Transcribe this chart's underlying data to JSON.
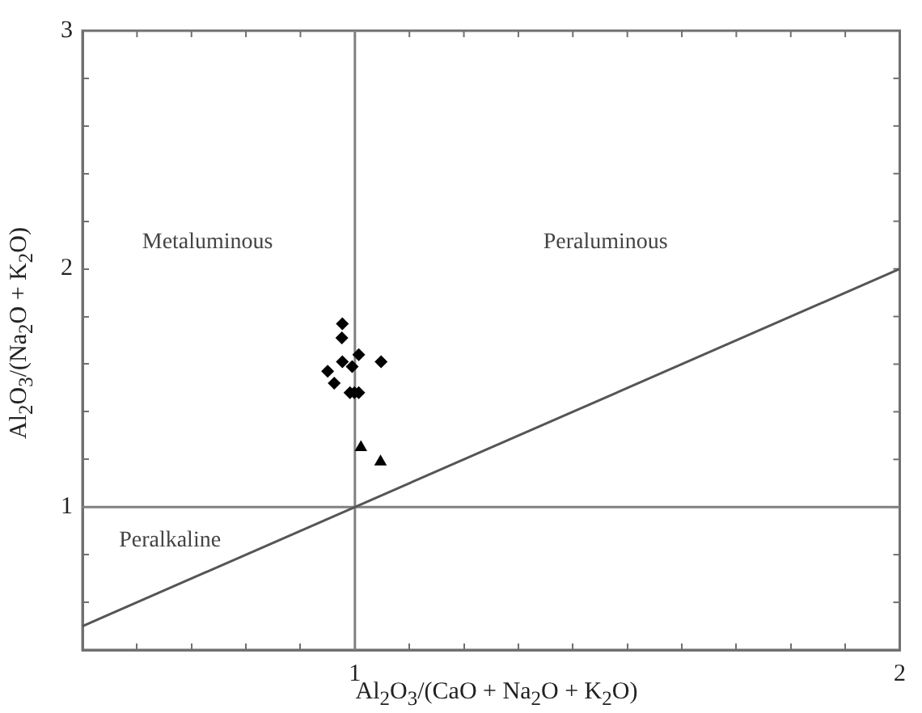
{
  "chart_data": {
    "type": "scatter",
    "xlabel": "Al$_{2}$O$_{3}$/(CaO + Na$_{2}$O + K$_{2}$O)",
    "ylabel": "Al$_{2}$O$_{3}$/(Na$_{2}$O + K$_{2}$O)",
    "xlim": [
      0.5,
      2
    ],
    "ylim": [
      0.4,
      3
    ],
    "xticks": [
      {
        "value": 0.5,
        "label": null
      },
      {
        "value": 0.6,
        "label": null
      },
      {
        "value": 0.7,
        "label": null
      },
      {
        "value": 0.8,
        "label": null
      },
      {
        "value": 0.9,
        "label": null
      },
      1,
      {
        "value": 1.1,
        "label": null
      },
      {
        "value": 1.2,
        "label": null
      },
      {
        "value": 1.3,
        "label": null
      },
      {
        "value": 1.4,
        "label": null
      },
      {
        "value": 1.5,
        "label": null
      },
      {
        "value": 1.6,
        "label": null
      },
      {
        "value": 1.7,
        "label": null
      },
      {
        "value": 1.8,
        "label": null
      },
      {
        "value": 1.9,
        "label": null
      },
      2
    ],
    "yticks": [
      {
        "value": 0.4,
        "label": null
      },
      {
        "value": 0.6,
        "label": null
      },
      {
        "value": 0.8,
        "label": null
      },
      1,
      {
        "value": 1.2,
        "label": null
      },
      {
        "value": 1.4,
        "label": null
      },
      {
        "value": 1.6,
        "label": null
      },
      {
        "value": 1.8,
        "label": null
      },
      2,
      {
        "value": 2.2,
        "label": null
      },
      {
        "value": 2.4,
        "label": null
      },
      {
        "value": 2.6,
        "label": null
      },
      {
        "value": 2.8,
        "label": null
      },
      3
    ],
    "grid": false,
    "legend": false,
    "series": [
      {
        "type": "scatter",
        "marker": "diamond",
        "color": "#000000",
        "x": [
          0.977,
          0.976,
          1.007,
          0.977,
          1.048,
          0.995,
          0.95,
          0.962,
          0.991,
          0.999,
          1.007
        ],
        "values": [
          1.77,
          1.71,
          1.64,
          1.61,
          1.61,
          1.59,
          1.57,
          1.52,
          1.48,
          1.48,
          1.48
        ]
      },
      {
        "type": "scatter",
        "marker": "triangle",
        "color": "#000000",
        "x": [
          1.011,
          1.047
        ],
        "values": [
          1.25,
          1.19
        ]
      },
      {
        "type": "line",
        "marker": "none",
        "color": "#555555",
        "x": [
          0.5,
          2
        ],
        "values": [
          0.5,
          2
        ]
      },
      {
        "type": "line",
        "marker": "none",
        "color": "#808080",
        "x": [
          1,
          1
        ],
        "values": [
          0.4,
          3
        ]
      },
      {
        "type": "line",
        "marker": "none",
        "color": "#808080",
        "x": [
          0.5,
          2
        ],
        "values": [
          1,
          1
        ]
      }
    ],
    "annotations": [
      "Metaluminous",
      "Peraluminous",
      "Peralkaline"
    ]
  }
}
